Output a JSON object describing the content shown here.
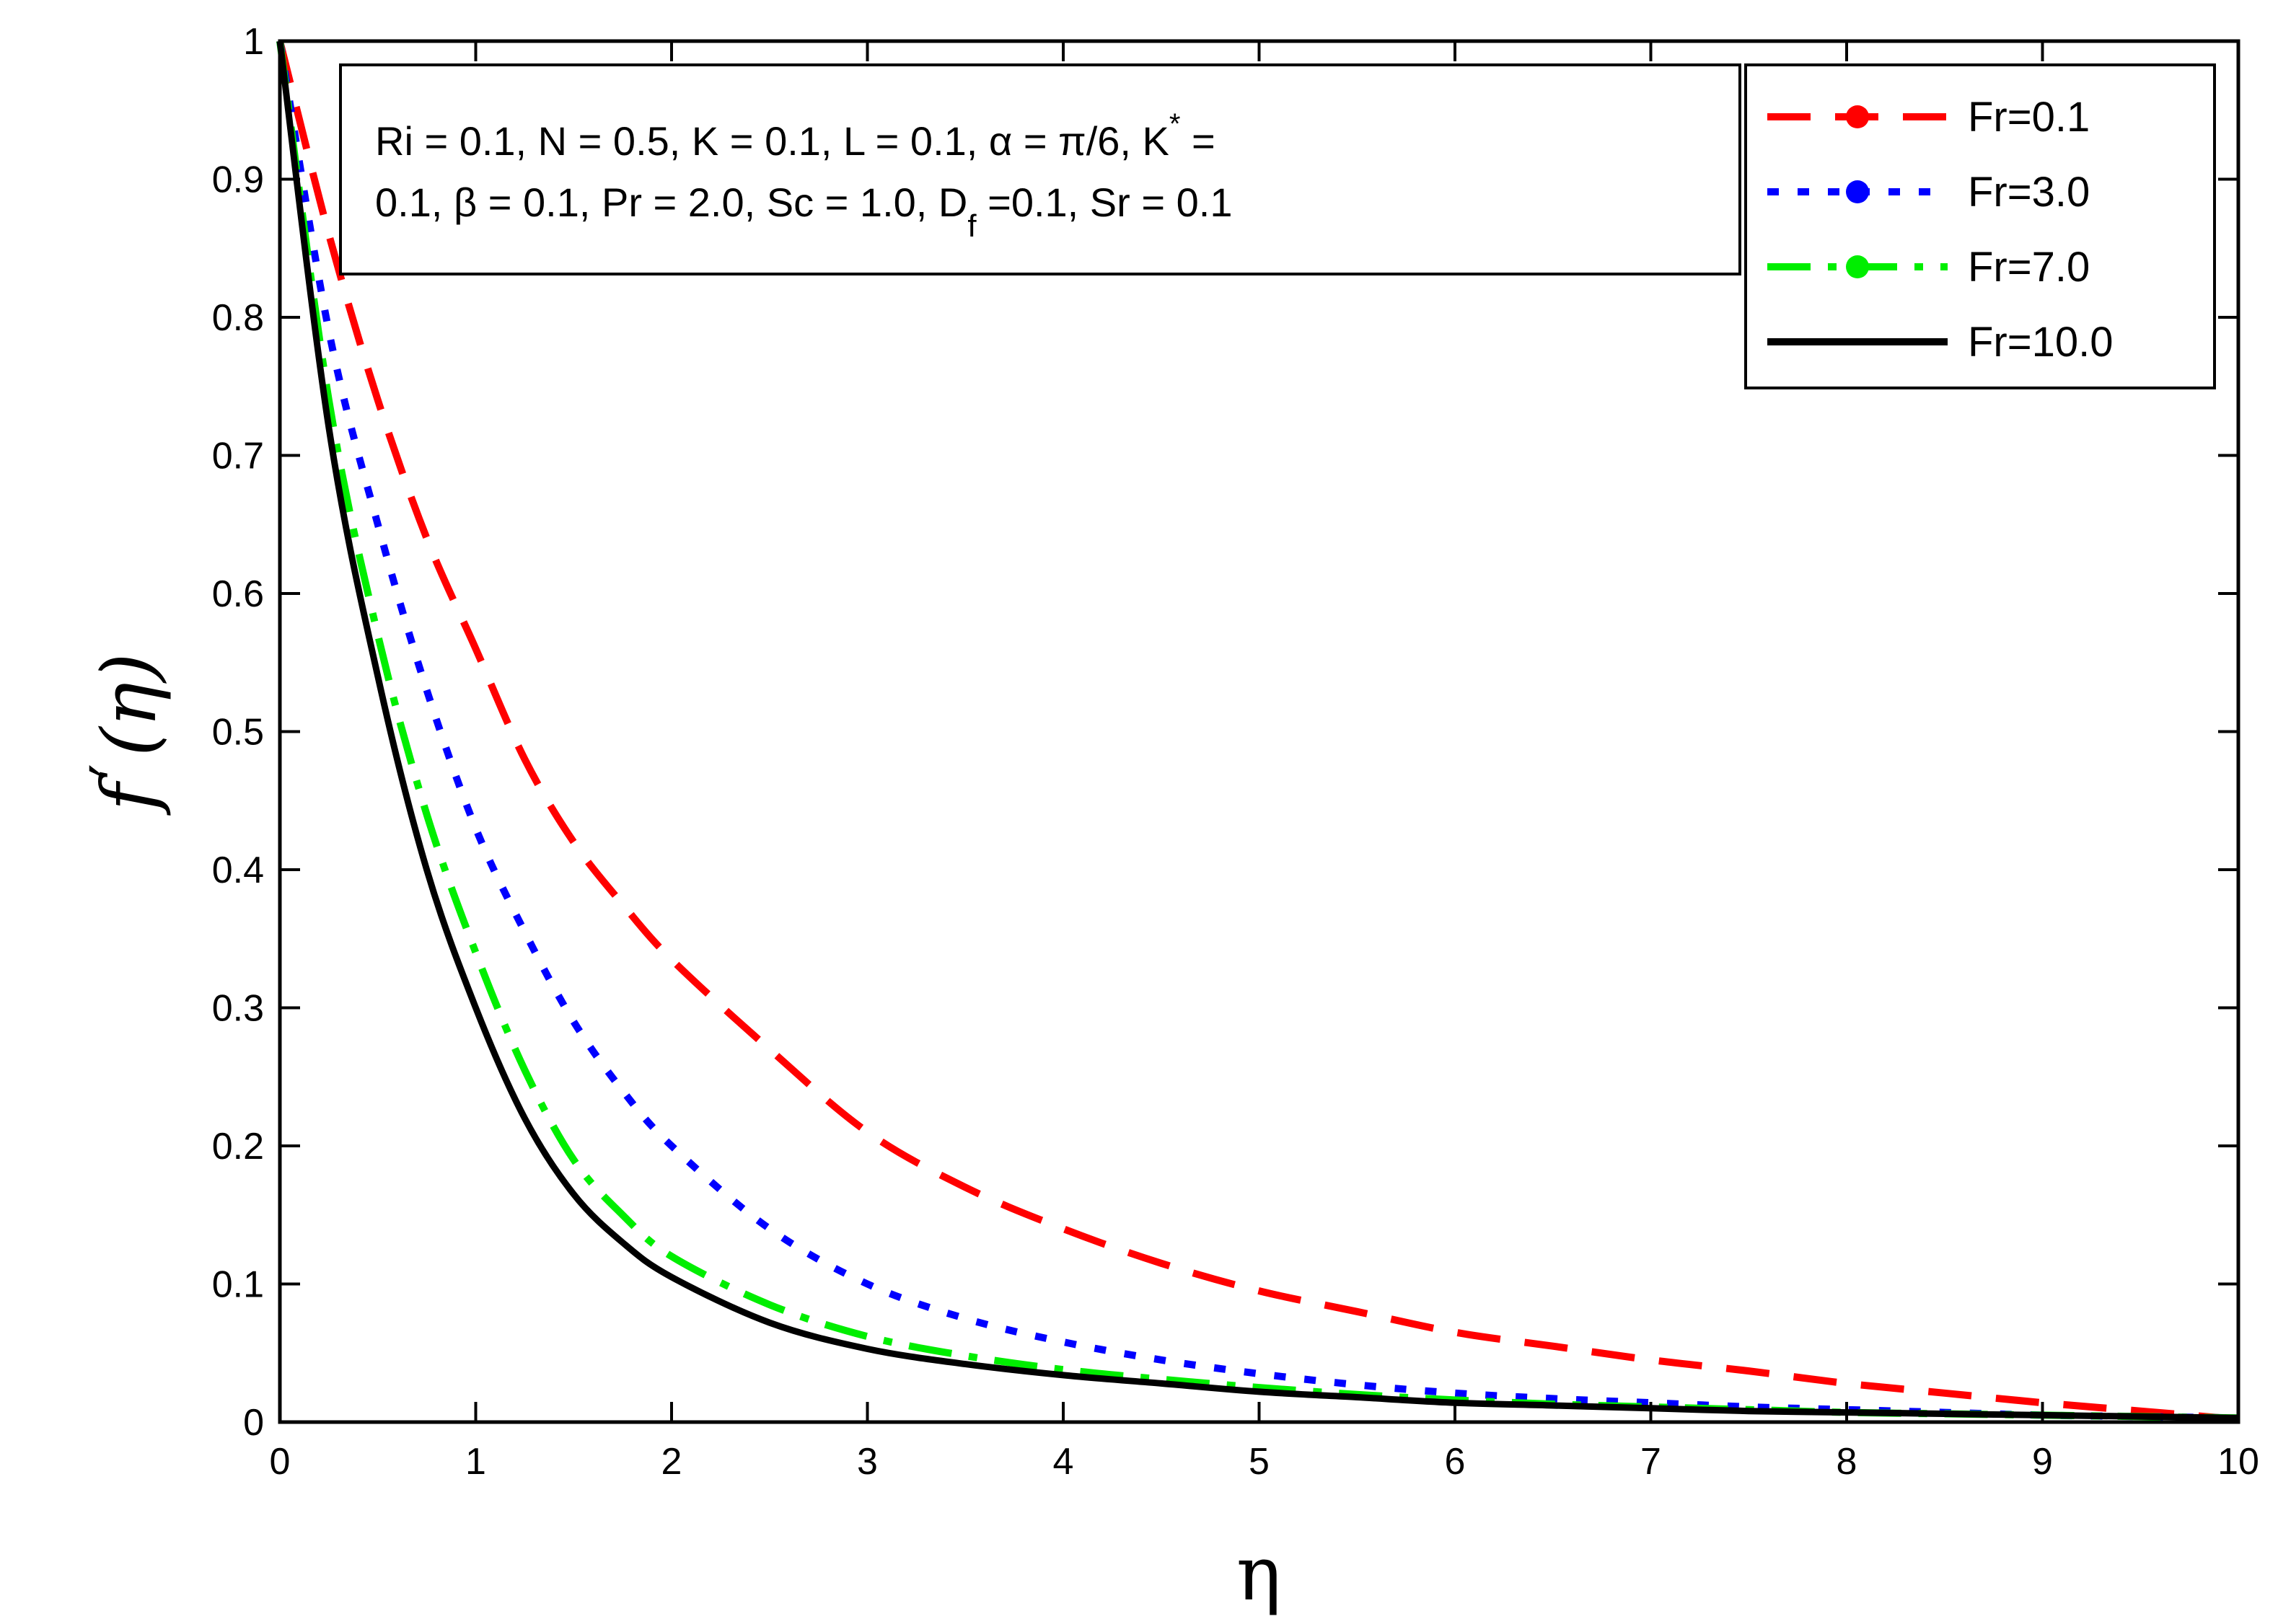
{
  "chart_data": {
    "type": "line",
    "xlabel": "η",
    "ylabel_main": "f",
    "ylabel_prime": "′",
    "ylabel_arg": "(η)",
    "xlim": [
      0,
      10
    ],
    "ylim": [
      0,
      1
    ],
    "xticks": [
      "0",
      "1",
      "2",
      "3",
      "4",
      "5",
      "6",
      "7",
      "8",
      "9",
      "10"
    ],
    "yticks": [
      "0",
      "0.1",
      "0.2",
      "0.3",
      "0.4",
      "0.5",
      "0.6",
      "0.7",
      "0.8",
      "0.9",
      "1"
    ],
    "grid": false,
    "legend_position": "top-right",
    "annotation": {
      "line1": "Ri = 0.1, N = 0.5, K = 0.1, L = 0.1, α = π/6, K",
      "line1_sup": "*",
      "line1_end": " =",
      "line2_start": "0.1, β = 0.1, Pr = 2.0, Sc = 1.0, D",
      "line2_sub": "f",
      "line2_end": " =0.1, Sr = 0.1"
    },
    "x": [
      0,
      0.25,
      0.5,
      0.75,
      1,
      1.25,
      1.5,
      1.75,
      2,
      2.5,
      3,
      3.5,
      4,
      4.5,
      5,
      5.5,
      6,
      6.5,
      7,
      7.5,
      8,
      8.5,
      9,
      9.5,
      10
    ],
    "series": [
      {
        "name": "Fr=0.1",
        "color": "#ff0000",
        "style": "dashed",
        "values": [
          1.0,
          0.86,
          0.74,
          0.64,
          0.56,
          0.48,
          0.42,
          0.375,
          0.335,
          0.27,
          0.21,
          0.17,
          0.14,
          0.115,
          0.095,
          0.08,
          0.065,
          0.055,
          0.045,
          0.037,
          0.028,
          0.021,
          0.014,
          0.008,
          0.002
        ]
      },
      {
        "name": "Fr=3.0",
        "color": "#0000ff",
        "style": "dotted",
        "values": [
          1.0,
          0.79,
          0.65,
          0.53,
          0.43,
          0.355,
          0.29,
          0.24,
          0.2,
          0.14,
          0.1,
          0.075,
          0.058,
          0.045,
          0.035,
          0.027,
          0.021,
          0.017,
          0.014,
          0.011,
          0.009,
          0.007,
          0.005,
          0.004,
          0.003
        ]
      },
      {
        "name": "Fr=7.0",
        "color": "#00ee00",
        "style": "dashdot",
        "values": [
          1.0,
          0.74,
          0.57,
          0.44,
          0.34,
          0.255,
          0.19,
          0.15,
          0.12,
          0.085,
          0.062,
          0.048,
          0.038,
          0.031,
          0.025,
          0.02,
          0.016,
          0.013,
          0.011,
          0.009,
          0.007,
          0.006,
          0.005,
          0.004,
          0.003
        ]
      },
      {
        "name": "Fr=10.0",
        "color": "#000000",
        "style": "solid",
        "values": [
          1.0,
          0.72,
          0.54,
          0.4,
          0.3,
          0.22,
          0.165,
          0.13,
          0.105,
          0.072,
          0.053,
          0.042,
          0.034,
          0.028,
          0.022,
          0.018,
          0.014,
          0.012,
          0.01,
          0.008,
          0.007,
          0.006,
          0.005,
          0.004,
          0.003
        ]
      }
    ]
  }
}
